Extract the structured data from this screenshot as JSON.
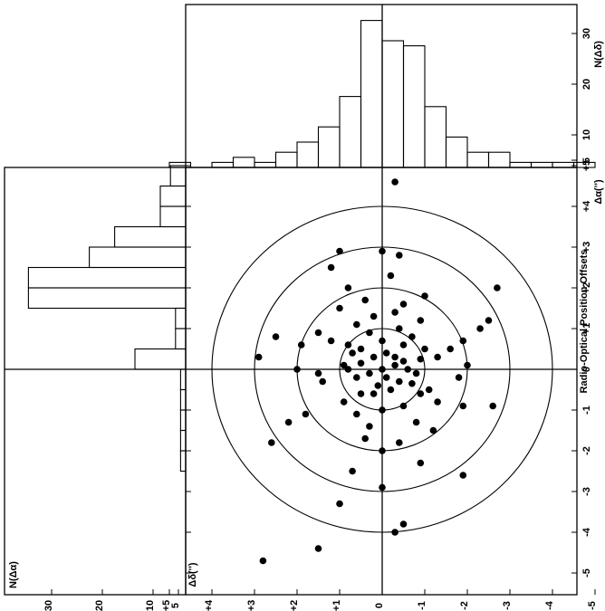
{
  "chart_data": {
    "type": "scatter",
    "title": "Radio-Optical Position Offsets",
    "xlabel": "Δα('')",
    "ylabel": "Δδ('')",
    "xlim": [
      -5,
      5
    ],
    "ylim": [
      -5,
      5
    ],
    "x_ticks": [
      "-5",
      "-4",
      "-3",
      "-2",
      "-1",
      "0",
      "+1",
      "+2",
      "+3",
      "+4",
      "+5"
    ],
    "y_ticks": [
      "+5",
      "+4",
      "+3",
      "+2",
      "+1",
      "0",
      "-1",
      "-2",
      "-3",
      "-4",
      "-5"
    ],
    "circle_radii": [
      1,
      2,
      3,
      4
    ],
    "points": [
      [
        -0.2,
        0.1
      ],
      [
        0.0,
        0.0
      ],
      [
        0.1,
        0.3
      ],
      [
        -0.1,
        -0.3
      ],
      [
        0.2,
        0.5
      ],
      [
        0.3,
        -0.2
      ],
      [
        -0.3,
        0.4
      ],
      [
        0.0,
        0.6
      ],
      [
        0.15,
        -0.5
      ],
      [
        -0.2,
        -0.6
      ],
      [
        0.25,
        0.9
      ],
      [
        0.4,
        0.1
      ],
      [
        -0.4,
        -0.1
      ],
      [
        0.5,
        -0.5
      ],
      [
        0.0,
        -0.8
      ],
      [
        -0.1,
        0.8
      ],
      [
        0.3,
        0.3
      ],
      [
        -0.35,
        0.7
      ],
      [
        0.6,
        0.5
      ],
      [
        -0.5,
        0.2
      ],
      [
        0.1,
        -0.9
      ],
      [
        0.5,
        1.0
      ],
      [
        0.6,
        -0.8
      ],
      [
        -0.6,
        -0.5
      ],
      [
        0.7,
        0.0
      ],
      [
        0.8,
        0.7
      ],
      [
        -0.6,
        0.9
      ],
      [
        0.9,
        -0.3
      ],
      [
        0.3,
        1.3
      ],
      [
        -0.5,
        1.1
      ],
      [
        1.0,
        0.4
      ],
      [
        -0.8,
        -0.9
      ],
      [
        0.7,
        -1.2
      ],
      [
        -0.9,
        0.5
      ],
      [
        1.1,
        -0.6
      ],
      [
        0.5,
        1.6
      ],
      [
        -0.8,
        1.3
      ],
      [
        1.2,
        0.9
      ],
      [
        -1.0,
        0.0
      ],
      [
        0.9,
        -1.5
      ],
      [
        -0.3,
        -1.4
      ],
      [
        1.3,
        -0.2
      ],
      [
        0.7,
        1.9
      ],
      [
        -1.1,
        -0.6
      ],
      [
        1.4,
        0.3
      ],
      [
        -0.2,
        1.8
      ],
      [
        -1.3,
        0.8
      ],
      [
        -0.1,
        -1.5
      ],
      [
        1.5,
        -1.0
      ],
      [
        0.1,
        2.0
      ],
      [
        -1.4,
        -0.3
      ],
      [
        0.0,
        -2.0
      ],
      [
        1.6,
        0.5
      ],
      [
        -1.5,
        1.2
      ],
      [
        0.6,
        -1.9
      ],
      [
        -1.7,
        -0.4
      ],
      [
        1.7,
        -0.4
      ],
      [
        -1.1,
        -1.8
      ],
      [
        1.8,
        1.0
      ],
      [
        -0.9,
        1.9
      ],
      [
        -1.8,
        0.4
      ],
      [
        1.0,
        2.3
      ],
      [
        -2.0,
        0.0
      ],
      [
        2.0,
        -0.8
      ],
      [
        -2.3,
        0.9
      ],
      [
        0.8,
        -2.5
      ],
      [
        2.3,
        0.2
      ],
      [
        -1.3,
        -2.2
      ],
      [
        1.2,
        2.5
      ],
      [
        -2.5,
        -0.7
      ],
      [
        2.5,
        -1.2
      ],
      [
        -0.9,
        2.6
      ],
      [
        2.8,
        0.4
      ],
      [
        -2.9,
        0.0
      ],
      [
        0.3,
        -2.9
      ],
      [
        -2.6,
        1.9
      ],
      [
        2.9,
        -1.0
      ],
      [
        -1.8,
        -2.6
      ],
      [
        2.0,
        2.7
      ],
      [
        -3.3,
        -1.0
      ],
      [
        -3.8,
        0.5
      ],
      [
        -4.0,
        0.3
      ],
      [
        -4.4,
        -1.5
      ],
      [
        -4.7,
        -2.8
      ],
      [
        2.9,
        0.0
      ],
      [
        4.6,
        0.3
      ],
      [
        -0.6,
        -0.2
      ],
      [
        0.4,
        -0.7
      ]
    ],
    "top_histogram": {
      "title": "N(Δδ)",
      "axis_label": "Δδ",
      "bin_edges": [
        -5,
        -4.5,
        -4,
        -3.5,
        -3,
        -2.5,
        -2,
        -1.5,
        -1,
        -0.5,
        0,
        0.5,
        1,
        1.5,
        2,
        2.5,
        3,
        3.5,
        4,
        4.5,
        5
      ],
      "counts": [
        1,
        0,
        1,
        2,
        1,
        3,
        5,
        8,
        14,
        29,
        25,
        24,
        12,
        6,
        3,
        3,
        1,
        1,
        1,
        1
      ],
      "ticks": [
        "5",
        "10",
        "20",
        "30"
      ]
    },
    "left_histogram": {
      "title": "N(Δα)",
      "axis_label": "Δα",
      "bin_edges": [
        -5,
        -4.5,
        -4,
        -3.5,
        -3,
        -2.5,
        -2,
        -1.5,
        -1,
        -0.5,
        0,
        0.5,
        1,
        1.5,
        2,
        2.5,
        3,
        3.5,
        4,
        4.5,
        5
      ],
      "counts": [
        0,
        0,
        0,
        0,
        0,
        1,
        1,
        1,
        1,
        1,
        10,
        2,
        2,
        31,
        31,
        19,
        14,
        5,
        5,
        3
      ],
      "ticks": [
        "30",
        "20",
        "10",
        "5"
      ]
    }
  }
}
